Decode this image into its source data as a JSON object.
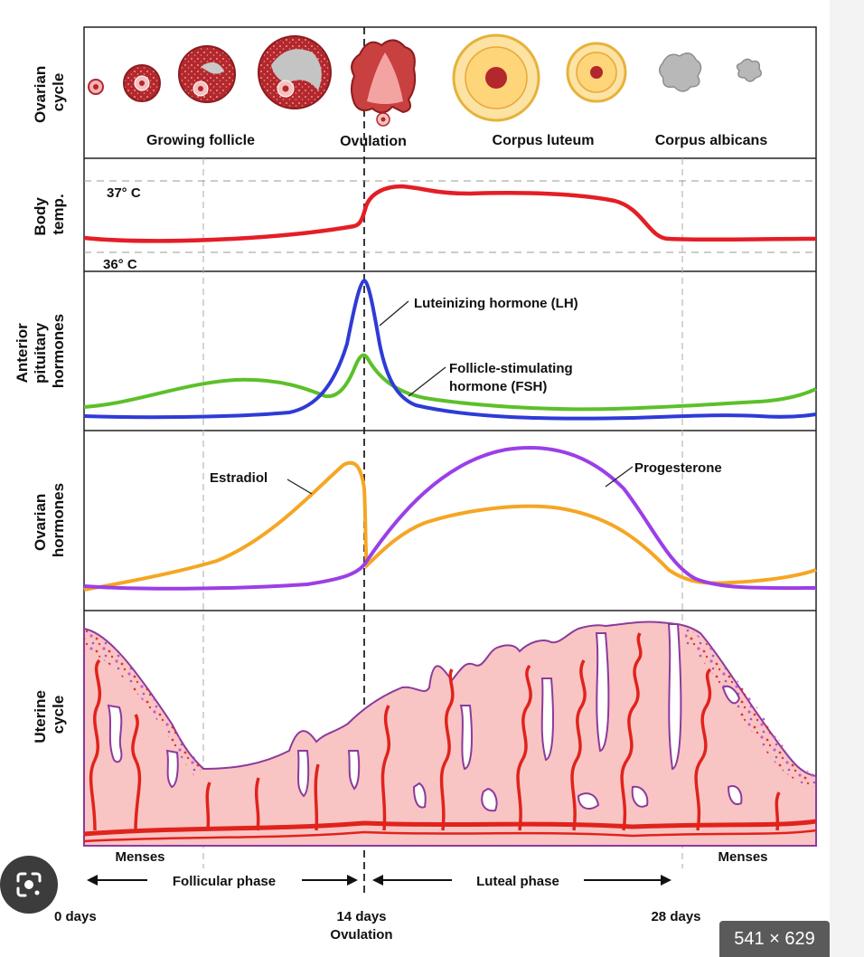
{
  "rows": {
    "ovarian_cycle": [
      "Ovarian",
      "cycle"
    ],
    "body_temp": [
      "Body",
      "temp."
    ],
    "pituitary": [
      "Anterior",
      "pituitary",
      "hormones"
    ],
    "ovarian_hormones": [
      "Ovarian",
      "hormones"
    ],
    "uterine_cycle": [
      "Uterine",
      "cycle"
    ]
  },
  "ovarian_stages": {
    "growing_follicle": "Growing follicle",
    "ovulation": "Ovulation",
    "corpus_luteum": "Corpus luteum",
    "corpus_albicans": "Corpus albicans"
  },
  "temperature": {
    "high": "37° C",
    "low": "36° C"
  },
  "hormones": {
    "lh": "Luteinizing hormone (LH)",
    "fsh_line1": "Follicle-stimulating",
    "fsh_line2": "hormone (FSH)",
    "estradiol": "Estradiol",
    "progesterone": "Progesterone"
  },
  "phases": {
    "menses_start": "Menses",
    "menses_end": "Menses",
    "follicular": "Follicular phase",
    "luteal": "Luteal phase"
  },
  "days": {
    "day0": "0 days",
    "day14": "14 days",
    "ovulation": "Ovulation",
    "day28": "28 days"
  },
  "image_size_badge": "541 × 629",
  "colors": {
    "temperature": "#e41e26",
    "lh": "#2e3bd6",
    "fsh": "#5cc02a",
    "estradiol": "#f5a623",
    "progesterone": "#9b3fe6",
    "endometrium": "#f9c4c4",
    "vessel": "#e0231c"
  }
}
